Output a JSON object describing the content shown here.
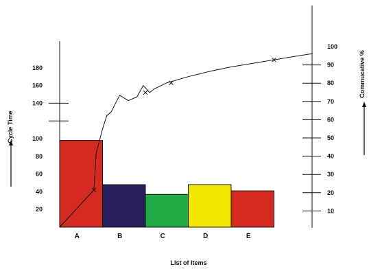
{
  "chart_data": {
    "type": "bar",
    "xlabel": "LIst of Items",
    "ylabel": "Cycle Time",
    "y2label": "Commucative %",
    "categories": [
      "A",
      "B",
      "C",
      "D",
      "E"
    ],
    "series": [
      {
        "values": [
          98,
          48,
          37,
          48,
          41
        ],
        "colors": [
          "#d42a22",
          "#2a1f5e",
          "#1faa44",
          "#f2e800",
          "#d42a22"
        ]
      }
    ],
    "ylim": [
      0,
      200
    ],
    "yticks": [
      20,
      40,
      60,
      80,
      100,
      120,
      140,
      160,
      180
    ],
    "ytick_labels": [
      "20",
      "40",
      "60",
      "80",
      "100",
      "",
      "140",
      "160",
      "180"
    ],
    "y2lim": [
      0,
      110
    ],
    "y2ticks": [
      10,
      20,
      30,
      40,
      50,
      60,
      70,
      80,
      90,
      100
    ],
    "y2tick_labels": [
      "10",
      "20",
      "30",
      "40",
      "50",
      "60",
      "70",
      "80",
      "90",
      "100"
    ],
    "line": {
      "points": [
        [
          0.0,
          0
        ],
        [
          0.8,
          42
        ],
        [
          0.85,
          83
        ],
        [
          1.0,
          111
        ],
        [
          1.1,
          126
        ],
        [
          1.2,
          130
        ],
        [
          1.4,
          149
        ],
        [
          1.6,
          143
        ],
        [
          1.8,
          147
        ],
        [
          1.95,
          160
        ],
        [
          2.1,
          152
        ],
        [
          2.2,
          156
        ],
        [
          2.5,
          163
        ],
        [
          3.0,
          170
        ],
        [
          3.5,
          176
        ],
        [
          4.0,
          181
        ],
        [
          4.5,
          185
        ],
        [
          5.0,
          189
        ],
        [
          5.5,
          193
        ],
        [
          5.9,
          196
        ]
      ],
      "markers": [
        [
          0.8,
          42
        ],
        [
          2.0,
          152
        ],
        [
          2.6,
          163
        ],
        [
          5.0,
          189
        ]
      ]
    },
    "grid": false,
    "legend": "none",
    "category_label_colors": {
      "A": "#d42a22"
    }
  }
}
